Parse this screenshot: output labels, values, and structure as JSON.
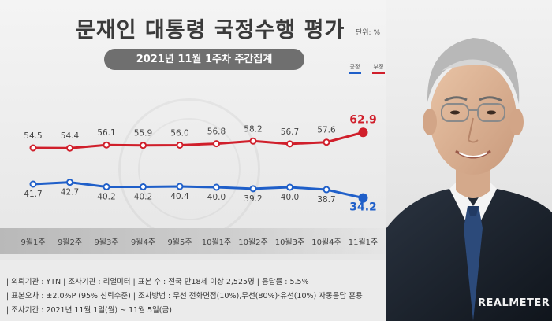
{
  "header": {
    "title": "문재인 대통령 국정수행 평가",
    "unit": "단위: %",
    "subtitle": "2021년 11월 1주차 주간집계"
  },
  "legend": [
    {
      "label": "긍정",
      "color": "#1f5fc9"
    },
    {
      "label": "부정",
      "color": "#d01f2b"
    }
  ],
  "chart_data": {
    "type": "line",
    "categories": [
      "9월1주",
      "9월2주",
      "9월3주",
      "9월4주",
      "9월5주",
      "10월1주",
      "10월2주",
      "10월3주",
      "10월4주",
      "11월1주"
    ],
    "series": [
      {
        "name": "부정",
        "color": "#d01f2b",
        "values": [
          54.5,
          54.4,
          56.1,
          55.9,
          56.0,
          56.8,
          58.2,
          56.7,
          57.6,
          62.9
        ]
      },
      {
        "name": "긍정",
        "color": "#1f5fc9",
        "values": [
          41.7,
          42.7,
          40.2,
          40.2,
          40.4,
          40.0,
          39.2,
          40.0,
          38.7,
          34.2
        ]
      }
    ],
    "value_labels": {
      "부정": [
        "54.5",
        "54.4",
        "56.1",
        "55.9",
        "56.0",
        "56.8",
        "58.2",
        "56.7",
        "57.6",
        "62.9"
      ],
      "긍정": [
        "41.7",
        "42.7",
        "40.2",
        "40.2",
        "40.4",
        "40.0",
        "39.2",
        "40.0",
        "38.7",
        "34.2"
      ]
    },
    "grid": false
  },
  "footer": {
    "line1": "| 의뢰기관 : YTN   |  조사기관 : 리얼미터   |  표본 수 : 전국 만18세 이상 2,525명   |  응답률 : 5.5%",
    "line2": "| 표본오차 : ±2.0%P (95% 신뢰수준)   |  조사방법 : 무선 전화면접(10%),무선(80%)·유선(10%) 자동응답 혼용",
    "line3": "| 조사기간 : 2021년 11월 1일(월) ~ 11월 5일(금)"
  },
  "brand": "REALMETER"
}
